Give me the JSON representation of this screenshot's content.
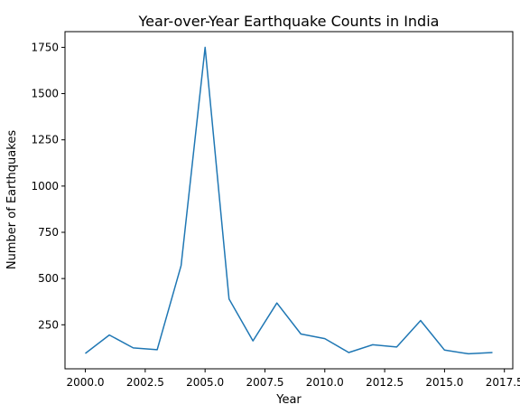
{
  "chart_data": {
    "type": "line",
    "title": "Year-over-Year Earthquake Counts in India",
    "xlabel": "Year",
    "ylabel": "Number of Earthquakes",
    "xlim": [
      1999.15,
      2017.85
    ],
    "ylim": [
      12,
      1835
    ],
    "xticks": [
      2000.0,
      2002.5,
      2005.0,
      2007.5,
      2010.0,
      2012.5,
      2015.0,
      2017.5
    ],
    "xtick_labels": [
      "2000.0",
      "2002.5",
      "2005.0",
      "2007.5",
      "2010.0",
      "2012.5",
      "2015.0",
      "2017.5"
    ],
    "yticks": [
      250,
      500,
      750,
      1000,
      1250,
      1500,
      1750
    ],
    "ytick_labels": [
      "250",
      "500",
      "750",
      "1000",
      "1250",
      "1500",
      "1750"
    ],
    "grid": false,
    "series": [
      {
        "color": "#1f77b4",
        "x": [
          2000,
          2001,
          2002,
          2003,
          2004,
          2005,
          2006,
          2007,
          2008,
          2009,
          2010,
          2011,
          2012,
          2013,
          2014,
          2015,
          2016,
          2017
        ],
        "y": [
          95,
          195,
          125,
          115,
          570,
          1750,
          390,
          163,
          368,
          200,
          175,
          100,
          142,
          130,
          273,
          113,
          93,
          100
        ]
      }
    ]
  }
}
